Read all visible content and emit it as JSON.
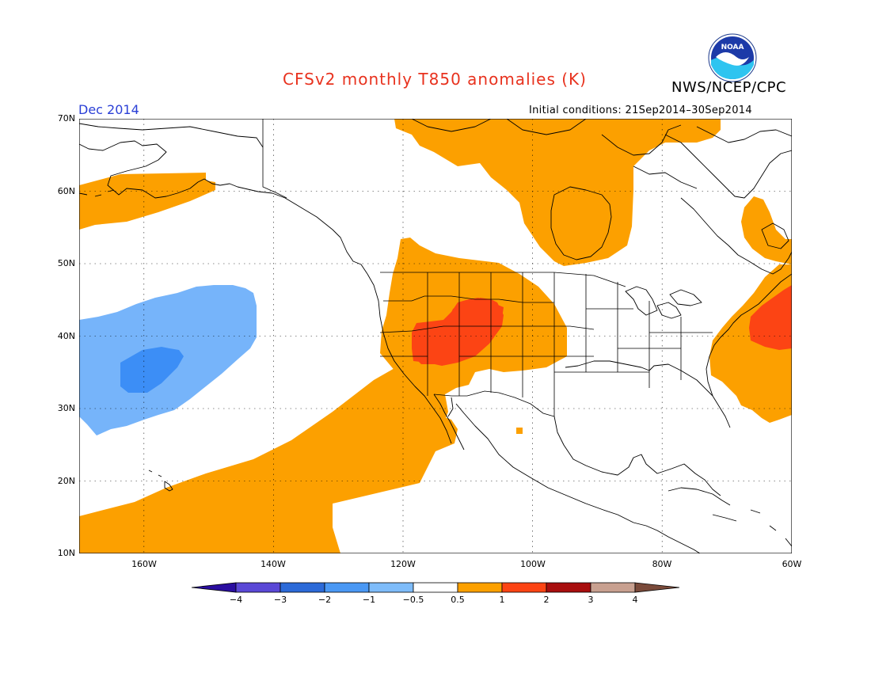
{
  "header": {
    "title": "CFSv2 monthly T850 anomalies (K)",
    "agency": "NWS/NCEP/CPC",
    "logo_text": "NOAA",
    "month": "Dec 2014",
    "initial_conditions": "Initial conditions: 21Sep2014–30Sep2014"
  },
  "map": {
    "lat_labels": [
      "70N",
      "60N",
      "50N",
      "40N",
      "30N",
      "20N",
      "10N"
    ],
    "lon_labels": [
      "160W",
      "140W",
      "120W",
      "100W",
      "80W",
      "60W"
    ],
    "extent": {
      "lon_min": -171,
      "lon_max": -60,
      "lat_min": 10,
      "lat_max": 70
    },
    "grid": "dotted",
    "anomaly_colors": {
      "neg_0_5_to_1": "#76b4fa",
      "neg_1_to_2": "#3c8ef6",
      "pos_0_5_to_1": "#fca000",
      "pos_1_to_2": "#fc4414"
    }
  },
  "colorbar": {
    "labels": [
      "−4",
      "−3",
      "−2",
      "−1",
      "−0.5",
      "0.5",
      "1",
      "2",
      "3",
      "4"
    ],
    "colors": [
      "#2a0ea0",
      "#5a48d6",
      "#2c6ad8",
      "#4a98f4",
      "#7ebcfa",
      "#ffffff",
      "#fca000",
      "#fc4414",
      "#a80e0e",
      "#c8a090",
      "#7a4a3a"
    ]
  }
}
